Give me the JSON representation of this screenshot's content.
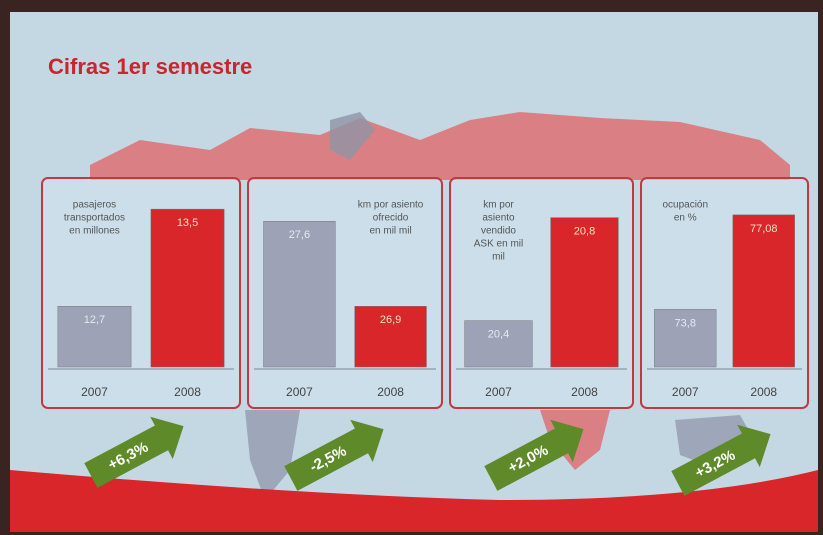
{
  "title": "Cifras 1er semestre",
  "chart_data": [
    {
      "type": "bar",
      "label": [
        "pasajeros",
        "transportados",
        "en millones"
      ],
      "categories": [
        "2007",
        "2008"
      ],
      "values": [
        12.7,
        13.5
      ],
      "value_labels": [
        "12,7",
        "13,5"
      ],
      "colors": [
        "#9ea2b6",
        "#d8262a"
      ],
      "ylim": [
        12.2,
        13.6
      ],
      "change": "+6,3%"
    },
    {
      "type": "bar",
      "label": [
        "km por asiento",
        "ofrecido",
        "en mil mil"
      ],
      "categories": [
        "2007",
        "2008"
      ],
      "values": [
        27.6,
        26.9
      ],
      "value_labels": [
        "27,6",
        "26,9"
      ],
      "colors": [
        "#9ea2b6",
        "#d8262a"
      ],
      "ylim": [
        26.4,
        27.8
      ],
      "change": "-2,5%"
    },
    {
      "type": "bar",
      "label": [
        "km por",
        "asiento",
        "vendido",
        "ASK en mil",
        "mil"
      ],
      "categories": [
        "2007",
        "2008"
      ],
      "values": [
        20.4,
        20.8
      ],
      "value_labels": [
        "20,4",
        "20,8"
      ],
      "colors": [
        "#9ea2b6",
        "#d8262a"
      ],
      "ylim": [
        20.22,
        20.88
      ],
      "change": "+2,0%"
    },
    {
      "type": "bar",
      "label": [
        "ocupación",
        "en %"
      ],
      "categories": [
        "2007",
        "2008"
      ],
      "values": [
        73.8,
        77.08
      ],
      "value_labels": [
        "73,8",
        "77,08"
      ],
      "colors": [
        "#9ea2b6",
        "#d8262a"
      ],
      "ylim": [
        71.8,
        77.7
      ],
      "change": "+3,2%"
    }
  ]
}
